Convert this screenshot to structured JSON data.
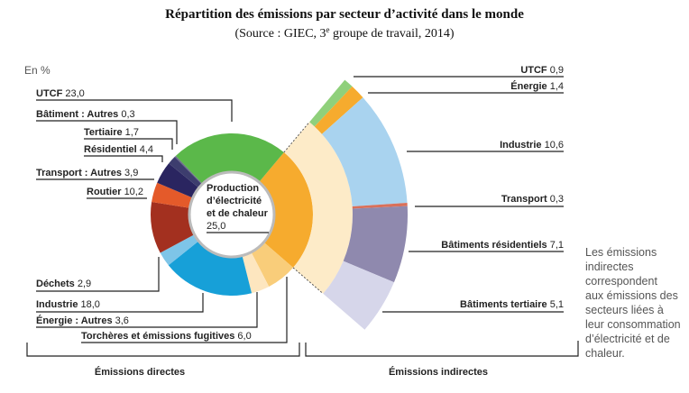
{
  "chart_data": {
    "type": "pie",
    "title": "Répartition des émissions par secteur d’activité dans le monde",
    "subtitle_pre": "(Source : GIEC, 3",
    "subtitle_sup": "e",
    "subtitle_post": " groupe de travail, 2014)",
    "unit_label": "En %",
    "center_label": [
      "Production",
      "d’électricité",
      "et de chaleur"
    ],
    "center_value": "25,0",
    "direct": [
      {
        "label": "Production d’électricité et de chaleur",
        "value": 25.0,
        "color": "#f6ab2e"
      },
      {
        "label": "Torchères et émissions fugitives",
        "value": 6.0,
        "display": "6,0",
        "color": "#f9cd7a"
      },
      {
        "label": "Énergie : Autres",
        "value": 3.6,
        "display": "3,6",
        "color": "#fde6bf"
      },
      {
        "label": "Industrie",
        "value": 18.0,
        "display": "18,0",
        "color": "#17a0d8"
      },
      {
        "label": "Déchets",
        "value": 2.9,
        "display": "2,9",
        "color": "#7ec5e8"
      },
      {
        "label": "Routier",
        "value": 10.2,
        "display": "10,2",
        "color": "#a3301f"
      },
      {
        "label": "Transport : Autres",
        "value": 3.9,
        "display": "3,9",
        "color": "#e45a2a"
      },
      {
        "label": "Résidentiel",
        "value": 4.4,
        "display": "4,4",
        "color": "#2a2560"
      },
      {
        "label": "Tertiaire",
        "value": 1.7,
        "display": "1,7",
        "color": "#3d3d6e"
      },
      {
        "label": "Bâtiment : Autres",
        "value": 0.3,
        "display": "0,3",
        "color": "#6b6b8a"
      },
      {
        "label": "UTCF",
        "value": 23.0,
        "display": "23,0",
        "color": "#5bb84a"
      }
    ],
    "indirect": [
      {
        "label": "UTCF",
        "value": 0.9,
        "display": "0,9",
        "color": "#8fd07b"
      },
      {
        "label": "Énergie",
        "value": 1.4,
        "display": "1,4",
        "color": "#f6ab2e"
      },
      {
        "label": "Industrie",
        "value": 10.6,
        "display": "10,6",
        "color": "#a9d3ef"
      },
      {
        "label": "Transport",
        "value": 0.3,
        "display": "0,3",
        "color": "#d9705a"
      },
      {
        "label": "Bâtiments résidentiels",
        "value": 7.1,
        "display": "7,1",
        "color": "#8f89ae"
      },
      {
        "label": "Bâtiments tertiaire",
        "value": 5.1,
        "display": "5,1",
        "color": "#d6d6ea"
      }
    ],
    "band_color": "#fdebc8",
    "group_labels": {
      "direct": "Émissions directes",
      "indirect": "Émissions indirectes"
    },
    "note": [
      "Les émissions",
      "indirectes",
      "correspondent",
      "aux émissions des",
      "secteurs liées à",
      "leur consommation",
      "d’électricité et de",
      "chaleur."
    ]
  }
}
